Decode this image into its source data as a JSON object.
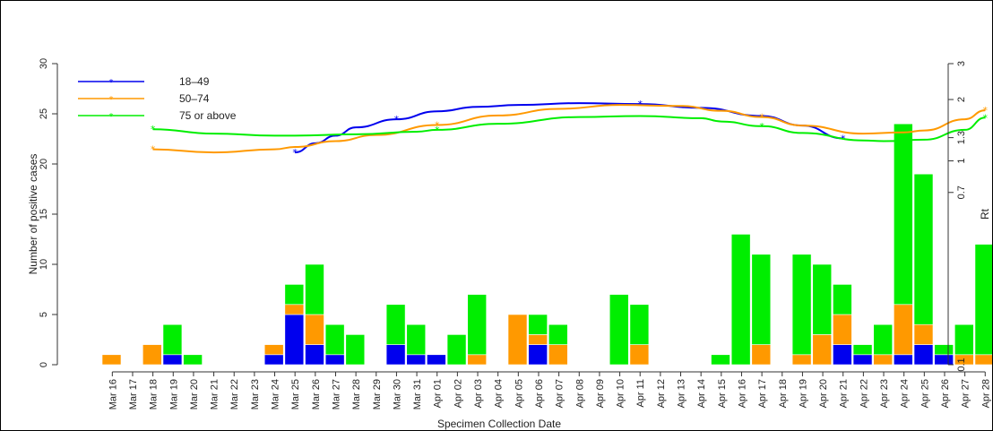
{
  "chart_data": {
    "type": "bar",
    "xlabel": "Specimen Collection Date",
    "ylabel": "Number of positive cases",
    "y2label": "Rt",
    "ylim": [
      0,
      30
    ],
    "y_ticks": [
      "0",
      "5",
      "10",
      "15",
      "20",
      "25",
      "30"
    ],
    "y2_scale": "log",
    "y2_ticks": [
      "0.1",
      "0.7",
      "1",
      "1.3",
      "2",
      "3"
    ],
    "grid": false,
    "legend_position": "top-left",
    "categories": [
      "Mar 16",
      "Mar 17",
      "Mar 18",
      "Mar 19",
      "Mar 20",
      "Mar 21",
      "Mar 22",
      "Mar 23",
      "Mar 24",
      "Mar 25",
      "Mar 26",
      "Mar 27",
      "Mar 28",
      "Mar 29",
      "Mar 30",
      "Mar 31",
      "Apr 01",
      "Apr 02",
      "Apr 03",
      "Apr 04",
      "Apr 05",
      "Apr 06",
      "Apr 07",
      "Apr 08",
      "Apr 09",
      "Apr 10",
      "Apr 11",
      "Apr 12",
      "Apr 13",
      "Apr 14",
      "Apr 15",
      "Apr 16",
      "Apr 17",
      "Apr 18",
      "Apr 19",
      "Apr 20",
      "Apr 21",
      "Apr 22",
      "Apr 23",
      "Apr 24",
      "Apr 25",
      "Apr 26",
      "Apr 27",
      "Apr 28"
    ],
    "series": [
      {
        "name": "18–49",
        "color": "#0000ee",
        "values": [
          0,
          0,
          0,
          1,
          0,
          0,
          0,
          0,
          1,
          5,
          2,
          1,
          0,
          0,
          2,
          1,
          1,
          0,
          0,
          0,
          0,
          2,
          0,
          0,
          0,
          0,
          0,
          0,
          0,
          0,
          0,
          0,
          0,
          0,
          0,
          0,
          2,
          1,
          0,
          1,
          2,
          1,
          0,
          0
        ]
      },
      {
        "name": "50–74",
        "color": "#ff9900",
        "values": [
          1,
          0,
          2,
          0,
          0,
          0,
          0,
          0,
          1,
          1,
          3,
          0,
          0,
          0,
          0,
          0,
          0,
          0,
          1,
          0,
          5,
          1,
          2,
          0,
          0,
          0,
          2,
          0,
          0,
          0,
          0,
          0,
          2,
          0,
          1,
          3,
          3,
          0,
          1,
          5,
          2,
          0,
          1,
          1
        ]
      },
      {
        "name": "75 or above",
        "color": "#00ee00",
        "values": [
          0,
          0,
          0,
          3,
          1,
          0,
          0,
          0,
          0,
          2,
          5,
          3,
          3,
          0,
          4,
          3,
          0,
          3,
          6,
          0,
          0,
          2,
          2,
          0,
          0,
          7,
          4,
          0,
          0,
          0,
          1,
          13,
          9,
          0,
          10,
          7,
          3,
          1,
          3,
          18,
          15,
          1,
          3,
          11
        ]
      }
    ],
    "rt_series": [
      {
        "name": "18–49",
        "color": "#0000ee",
        "points": [
          [
            9,
            1.1
          ],
          [
            10,
            1.22
          ],
          [
            11,
            1.33
          ],
          [
            12,
            1.46
          ],
          [
            14,
            1.6
          ],
          [
            16,
            1.75
          ],
          [
            18,
            1.84
          ],
          [
            20,
            1.88
          ],
          [
            23,
            1.92
          ],
          [
            26,
            1.9
          ],
          [
            29,
            1.82
          ],
          [
            32,
            1.66
          ],
          [
            34,
            1.49
          ],
          [
            36,
            1.29
          ]
        ]
      },
      {
        "name": "50–74",
        "color": "#ff9900",
        "points": [
          [
            2,
            1.14
          ],
          [
            5,
            1.1
          ],
          [
            8,
            1.14
          ],
          [
            9,
            1.17
          ],
          [
            11,
            1.25
          ],
          [
            13,
            1.34
          ],
          [
            16,
            1.5
          ],
          [
            19,
            1.67
          ],
          [
            22,
            1.8
          ],
          [
            25,
            1.88
          ],
          [
            28,
            1.86
          ],
          [
            30,
            1.76
          ],
          [
            32,
            1.64
          ],
          [
            34,
            1.49
          ],
          [
            37,
            1.36
          ],
          [
            39,
            1.38
          ],
          [
            40,
            1.41
          ],
          [
            42,
            1.6
          ],
          [
            43,
            1.77
          ]
        ]
      },
      {
        "name": "75 or above",
        "color": "#00ee00",
        "points": [
          [
            2,
            1.43
          ],
          [
            5,
            1.36
          ],
          [
            8,
            1.33
          ],
          [
            9,
            1.33
          ],
          [
            12,
            1.35
          ],
          [
            15,
            1.39
          ],
          [
            16,
            1.42
          ],
          [
            19,
            1.52
          ],
          [
            23,
            1.64
          ],
          [
            26,
            1.66
          ],
          [
            29,
            1.62
          ],
          [
            30,
            1.56
          ],
          [
            32,
            1.48
          ],
          [
            34,
            1.37
          ],
          [
            37,
            1.26
          ],
          [
            38,
            1.25
          ],
          [
            40,
            1.27
          ],
          [
            42,
            1.42
          ],
          [
            43,
            1.63
          ]
        ]
      }
    ]
  }
}
